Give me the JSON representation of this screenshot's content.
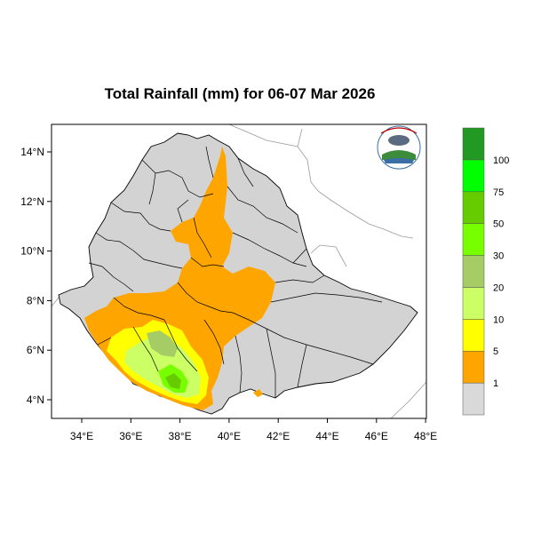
{
  "title": "Total Rainfall (mm) for 06-07 Mar 2026",
  "lon_ticks": [
    "34°E",
    "36°E",
    "38°E",
    "40°E",
    "42°E",
    "44°E",
    "46°E",
    "48°E"
  ],
  "lat_ticks": [
    "14°N",
    "12°N",
    "10°N",
    "8°N",
    "6°N",
    "4°N"
  ],
  "legend": {
    "labels": [
      "1",
      "5",
      "10",
      "20",
      "30",
      "50",
      "75",
      "100"
    ],
    "colors": [
      "#d9d9d9",
      "#ffa500",
      "#ffff00",
      "#ccff66",
      "#a6cc66",
      "#77ff00",
      "#66cc00",
      "#00ff00",
      "#229922"
    ]
  },
  "colors": {
    "country_fill": "#d3d3d3",
    "border": "#000000",
    "neighbor_line": "#999999"
  }
}
